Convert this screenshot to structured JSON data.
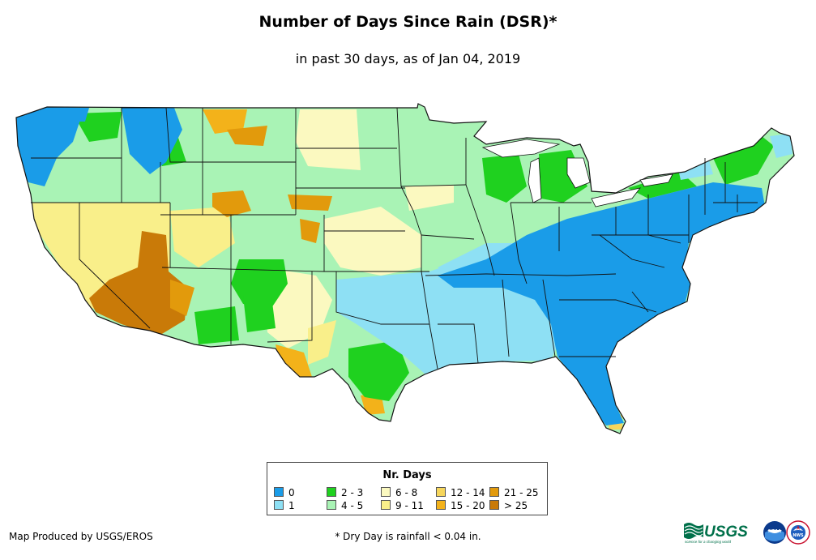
{
  "title": "Number of Days Since Rain (DSR)*",
  "subtitle": "in past 30 days, as of Jan 04, 2019",
  "legend": {
    "title": "Nr. Days",
    "items": [
      {
        "label": "0",
        "color": "#1a9ce8"
      },
      {
        "label": "1",
        "color": "#8ee0f4"
      },
      {
        "label": "2 - 3",
        "color": "#1fd11f"
      },
      {
        "label": "4 - 5",
        "color": "#a9f3b5"
      },
      {
        "label": "6 - 8",
        "color": "#fbf9c0"
      },
      {
        "label": "9 - 11",
        "color": "#f9ef8a"
      },
      {
        "label": "12 - 14",
        "color": "#f6d65c"
      },
      {
        "label": "15 - 20",
        "color": "#f3b21a"
      },
      {
        "label": "21 - 25",
        "color": "#e29a0c"
      },
      {
        "label": "> 25",
        "color": "#c97a08"
      }
    ]
  },
  "credit": "Map Produced by USGS/EROS",
  "footnote": "* Dry Day is rainfall < 0.04 in.",
  "logos": {
    "usgs": "USGS",
    "usgs_tagline": "science for a changing world",
    "noaa": "NOAA",
    "nws": "NWS"
  }
}
